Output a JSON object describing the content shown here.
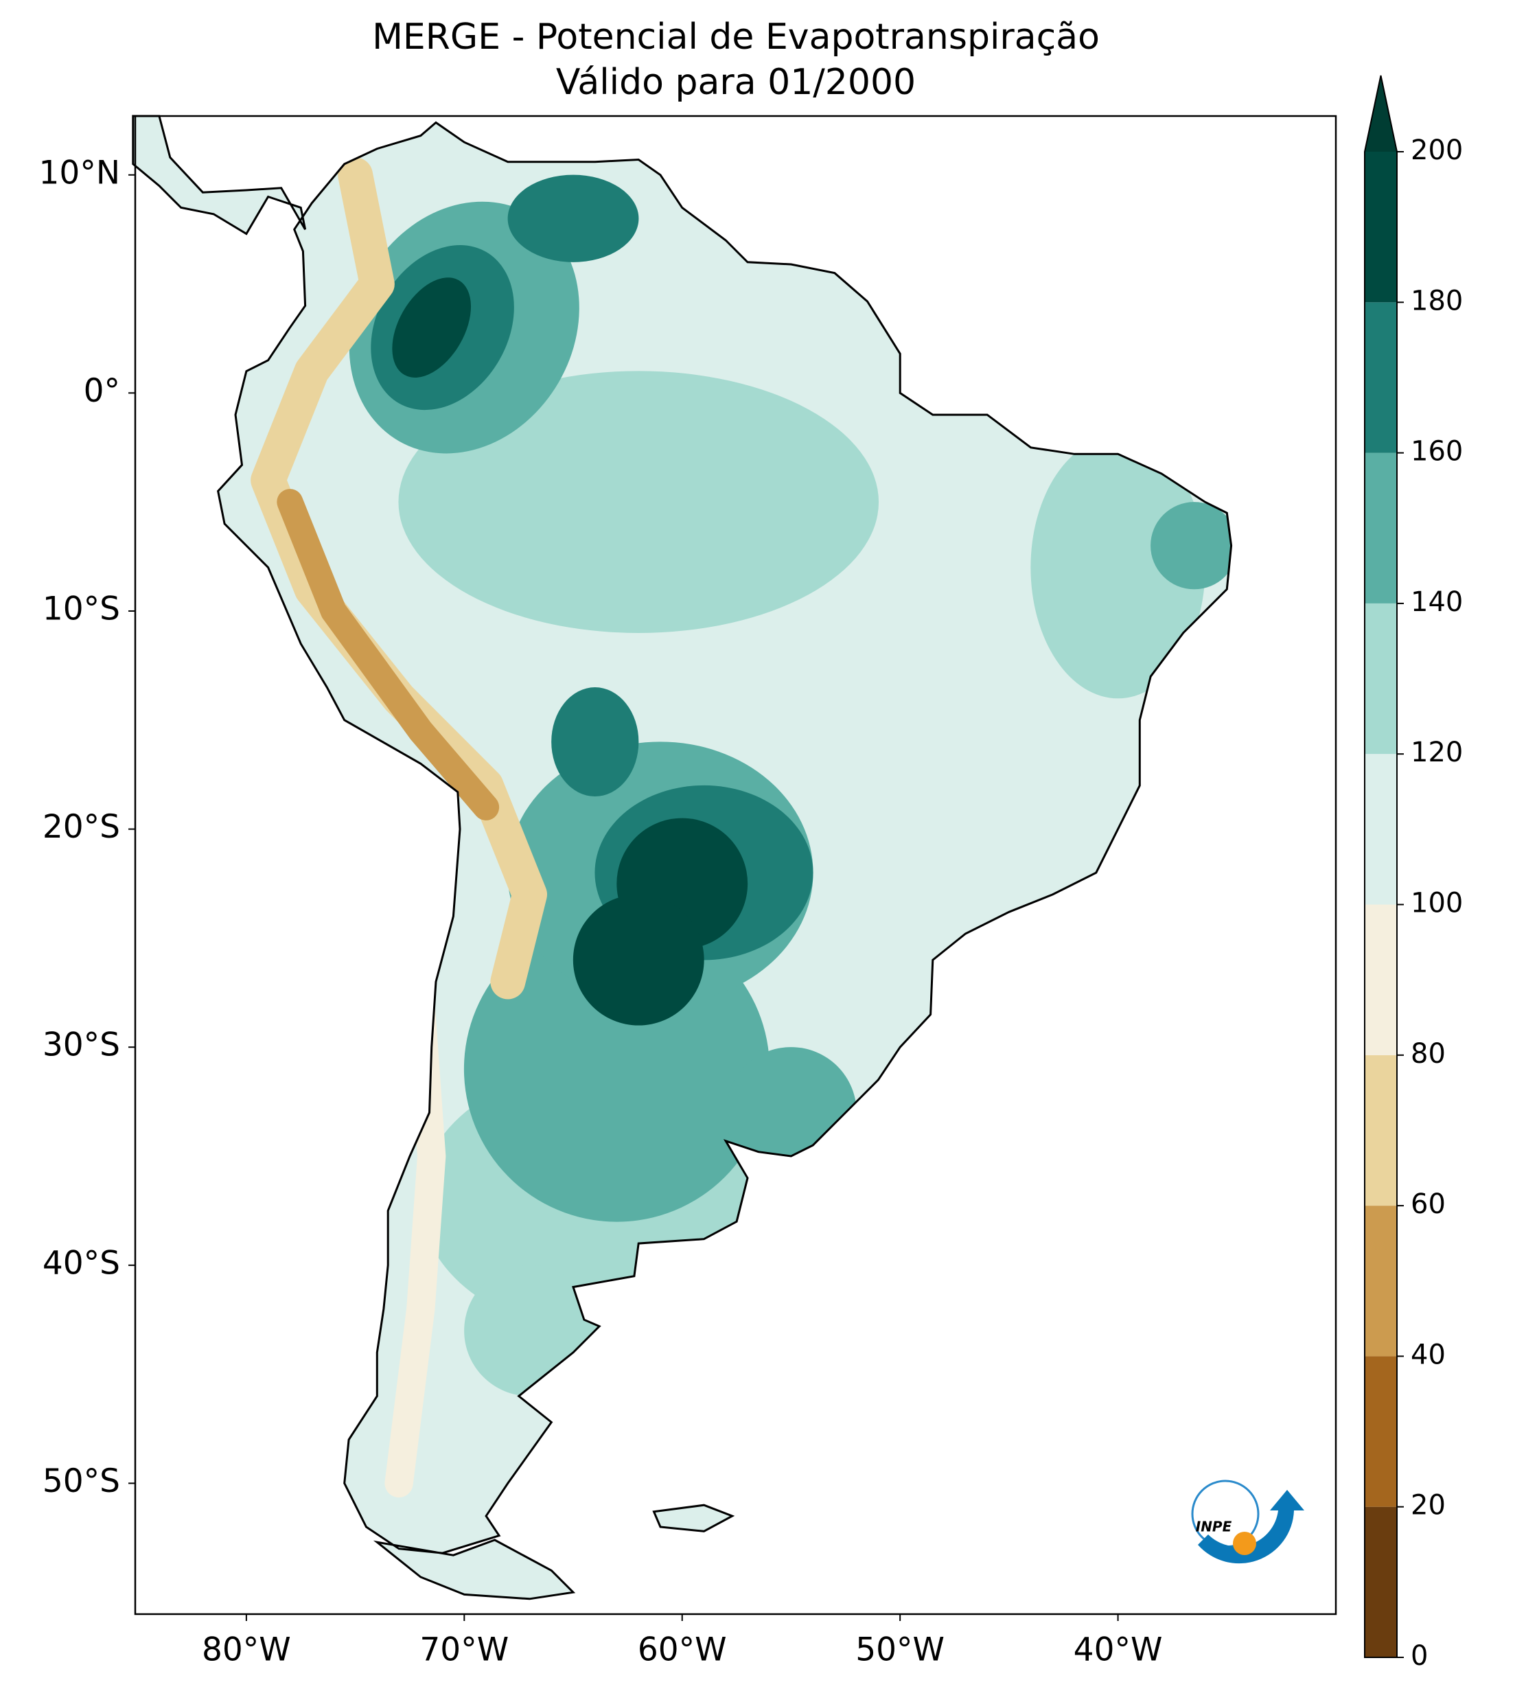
{
  "chart_data": {
    "type": "map",
    "title": [
      "MERGE - Potencial de Evapotranspiração",
      "Válido para 01/2000"
    ],
    "xlim": [
      -85.1,
      -30
    ],
    "ylim": [
      -56,
      12.7
    ],
    "xticks": [
      {
        "value": -80,
        "label": "80°W"
      },
      {
        "value": -70,
        "label": "70°W"
      },
      {
        "value": -60,
        "label": "60°W"
      },
      {
        "value": -50,
        "label": "50°W"
      },
      {
        "value": -40,
        "label": "40°W"
      }
    ],
    "yticks": [
      {
        "value": 10,
        "label": "10°N"
      },
      {
        "value": 0,
        "label": "0°"
      },
      {
        "value": -10,
        "label": "10°S"
      },
      {
        "value": -20,
        "label": "20°S"
      },
      {
        "value": -30,
        "label": "30°S"
      },
      {
        "value": -40,
        "label": "40°S"
      },
      {
        "value": -50,
        "label": "50°S"
      }
    ],
    "colorbar": {
      "ticks": [
        0,
        20,
        40,
        60,
        80,
        100,
        120,
        140,
        160,
        180,
        200
      ],
      "colors": [
        "#6a3d0f",
        "#a4661e",
        "#cc9b4f",
        "#ead49d",
        "#f5efde",
        "#dcefeb",
        "#a5dad0",
        "#5aafa4",
        "#1e7d75",
        "#004a40"
      ],
      "extend_color": "#003d33"
    },
    "logo_text": "INPE"
  }
}
